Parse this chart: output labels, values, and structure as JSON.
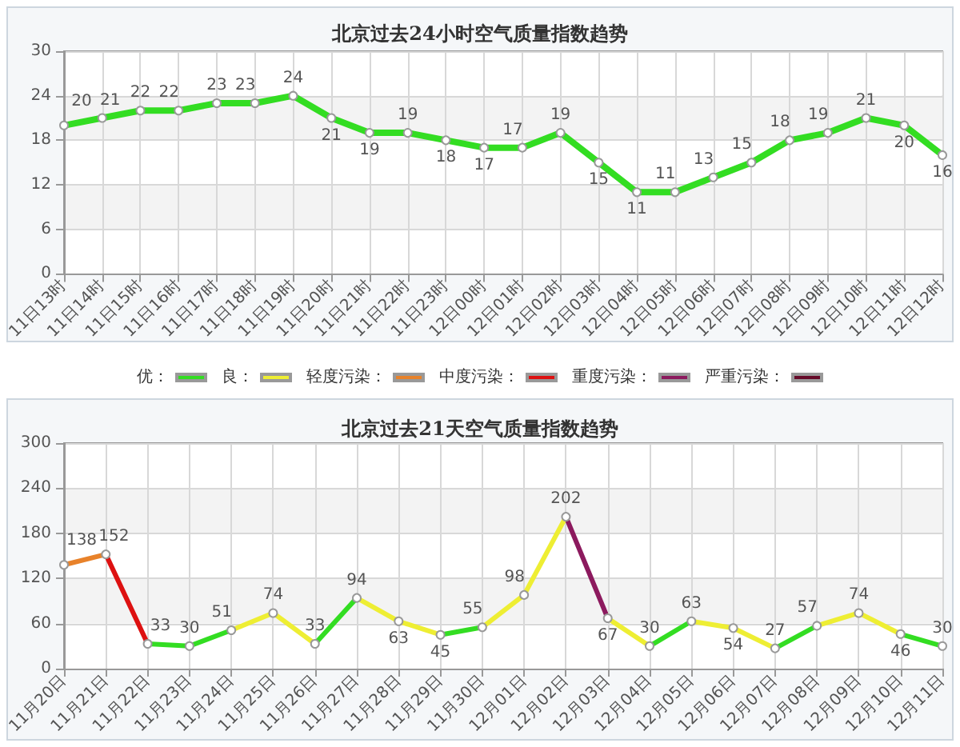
{
  "chart_data": [
    {
      "type": "line",
      "title": "北京过去24小时空气质量指数趋势",
      "categories": [
        "11日13时",
        "11日14时",
        "11日15时",
        "11日16时",
        "11日17时",
        "11日18时",
        "11日19时",
        "11日20时",
        "11日21时",
        "11日22时",
        "11日23时",
        "12日00时",
        "12日01时",
        "12日02时",
        "12日03时",
        "12日04时",
        "12日05时",
        "12日06时",
        "12日07时",
        "12日08时",
        "12日09时",
        "12日10时",
        "12日11时",
        "12日12时"
      ],
      "values": [
        20,
        21,
        22,
        22,
        23,
        23,
        24,
        21,
        19,
        19,
        18,
        17,
        17,
        19,
        15,
        11,
        11,
        13,
        15,
        18,
        19,
        21,
        20,
        16
      ],
      "color": "#33dd22",
      "ylim": [
        0,
        30
      ],
      "yticks": [
        0,
        6,
        12,
        18,
        24,
        30
      ],
      "grid": true,
      "marker": "circle",
      "data_labels": true
    },
    {
      "type": "line",
      "title": "北京过去21天空气质量指数趋势",
      "categories": [
        "11月20日",
        "11月21日",
        "11月22日",
        "11月23日",
        "11月24日",
        "11月25日",
        "11月26日",
        "11月27日",
        "11月28日",
        "11月29日",
        "11月30日",
        "12月01日",
        "12月02日",
        "12月03日",
        "12月04日",
        "12月05日",
        "12月06日",
        "12月07日",
        "12月08日",
        "12月09日",
        "12月10日",
        "12月11日"
      ],
      "series": [
        {
          "values": [
            138,
            152,
            33,
            30,
            51,
            74,
            33,
            94,
            63,
            45,
            55,
            98,
            202,
            67,
            30,
            63,
            54,
            27,
            57,
            74,
            46,
            30
          ],
          "colors": [
            "#e8822a",
            "#dd1111",
            "#33dd22",
            "#33dd22",
            "#eeee33",
            "#eeee33",
            "#33dd22",
            "#eeee33",
            "#eeee33",
            "#33dd22",
            "#eeee33",
            "#eeee33",
            "#8c1a5e",
            "#eeee33",
            "#33dd22",
            "#eeee33",
            "#eeee33",
            "#33dd22",
            "#eeee33",
            "#eeee33",
            "#33dd22",
            "#33dd22"
          ]
        },
        {
          "name": "优：",
          "color": "#33dd22",
          "values": [
            null,
            null,
            null,
            null,
            null,
            null,
            null,
            null,
            null,
            null,
            null,
            null,
            null,
            null,
            null,
            null,
            null,
            null,
            null,
            null,
            null,
            null
          ]
        },
        {
          "name": "良：",
          "color": "#eeee33",
          "values": [
            null,
            null,
            null,
            null,
            null,
            null,
            null,
            null,
            null,
            null,
            null,
            null,
            null,
            null,
            null,
            null,
            null,
            null,
            null,
            null,
            null,
            null
          ]
        },
        {
          "name": "轻度污染：",
          "color": "#e8822a",
          "values": [
            null,
            null,
            null,
            null,
            null,
            null,
            null,
            null,
            null,
            null,
            null,
            null,
            null,
            null,
            null,
            null,
            null,
            null,
            null,
            null,
            null,
            null
          ]
        },
        {
          "name": "中度污染：",
          "color": "#dd1111",
          "values": [
            null,
            null,
            null,
            null,
            null,
            null,
            null,
            null,
            null,
            null,
            null,
            null,
            null,
            null,
            null,
            null,
            null,
            null,
            null,
            null,
            null,
            null
          ]
        },
        {
          "name": "重度污染：",
          "color": "#8c1a5e",
          "values": [
            null,
            null,
            null,
            null,
            null,
            null,
            null,
            null,
            null,
            null,
            null,
            null,
            null,
            null,
            null,
            null,
            null,
            null,
            null,
            null,
            null,
            null
          ]
        },
        {
          "name": "严重污染：",
          "color": "#660a28",
          "values": [
            null,
            null,
            null,
            null,
            null,
            null,
            null,
            null,
            null,
            null,
            null,
            null,
            null,
            null,
            null,
            null,
            null,
            null,
            null,
            null,
            null,
            null
          ]
        }
      ],
      "ylim": [
        0,
        300
      ],
      "yticks": [
        0,
        60,
        120,
        180,
        240,
        300
      ],
      "grid": true,
      "marker": "circle",
      "data_labels": true,
      "legend": "top"
    }
  ]
}
